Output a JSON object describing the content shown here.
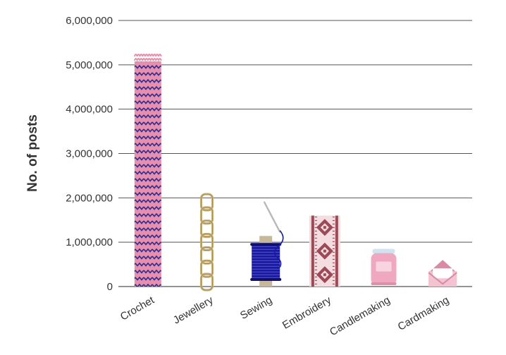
{
  "chart_data": {
    "type": "bar",
    "title": "",
    "xlabel": "",
    "ylabel": "No. of posts",
    "ylim": [
      0,
      6000000
    ],
    "yticks": [
      0,
      1000000,
      2000000,
      3000000,
      4000000,
      5000000,
      6000000
    ],
    "ytick_labels": [
      "0",
      "1,000,000",
      "2,000,000",
      "3,000,000",
      "4,000,000",
      "5,000,000",
      "6,000,000"
    ],
    "grid": true,
    "categories": [
      "Crochet",
      "Jewellery",
      "Sewing",
      "Embroidery",
      "Candlemaking",
      "Cardmaking"
    ],
    "values": [
      5300000,
      2100000,
      1100000,
      1600000,
      850000,
      600000
    ],
    "icons": [
      "crochet-icon",
      "chain-icon",
      "thread-spool-icon",
      "embroidery-icon",
      "candle-jar-icon",
      "envelope-icon"
    ],
    "colors": {
      "crochet_fill": "#e98fae",
      "crochet_zigzag": "#2b2e8f",
      "chain": "#c8b27a",
      "spool_thread": "#1a1a9e",
      "spool_wood": "#c8b89a",
      "embroidery_fill": "#f4dde0",
      "embroidery_pattern": "#9c4a58",
      "candle": "#f0a8c0",
      "candle_lid": "#cfe4f0",
      "envelope": "#f4c2d0",
      "envelope_dark": "#d98aa4"
    }
  }
}
